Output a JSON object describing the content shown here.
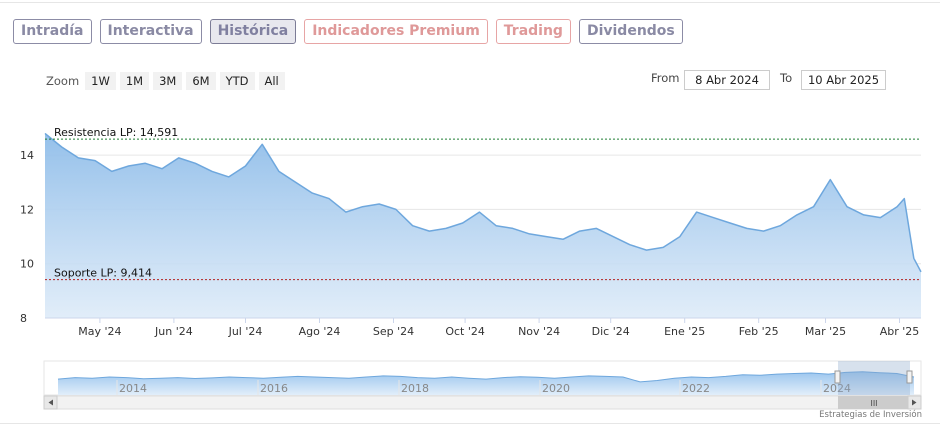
{
  "tabs": [
    {
      "label": "Intradía",
      "state": "normal"
    },
    {
      "label": "Interactiva",
      "state": "normal"
    },
    {
      "label": "Histórica",
      "state": "active"
    },
    {
      "label": "Indicadores Premium",
      "state": "red"
    },
    {
      "label": "Trading",
      "state": "red"
    },
    {
      "label": "Dividendos",
      "state": "normal"
    }
  ],
  "zoom": {
    "label": "Zoom",
    "buttons": [
      "1W",
      "1M",
      "3M",
      "6M",
      "YTD",
      "All"
    ]
  },
  "range": {
    "from_label": "From",
    "from_value": "8 Abr 2024",
    "to_label": "To",
    "to_value": "10 Abr 2025"
  },
  "chart_data": {
    "type": "area",
    "ylim": [
      8,
      15
    ],
    "yticks": [
      8,
      10,
      12,
      14
    ],
    "grid": true,
    "legend": "none",
    "x_tick_labels": [
      "May '24",
      "Jun '24",
      "Jul '24",
      "Ago '24",
      "Sep '24",
      "Oct '24",
      "Nov '24",
      "Dic '24",
      "Ene '25",
      "Feb '25",
      "Mar '25",
      "Abr '25"
    ],
    "x_dates": [
      "2024-04-08",
      "2024-04-15",
      "2024-04-22",
      "2024-04-29",
      "2024-05-06",
      "2024-05-13",
      "2024-05-20",
      "2024-05-27",
      "2024-06-03",
      "2024-06-10",
      "2024-06-17",
      "2024-06-24",
      "2024-07-01",
      "2024-07-08",
      "2024-07-15",
      "2024-07-22",
      "2024-07-29",
      "2024-08-05",
      "2024-08-12",
      "2024-08-19",
      "2024-08-26",
      "2024-09-02",
      "2024-09-09",
      "2024-09-16",
      "2024-09-23",
      "2024-09-30",
      "2024-10-07",
      "2024-10-14",
      "2024-10-21",
      "2024-10-28",
      "2024-11-04",
      "2024-11-11",
      "2024-11-18",
      "2024-11-25",
      "2024-12-02",
      "2024-12-09",
      "2024-12-16",
      "2024-12-23",
      "2024-12-30",
      "2025-01-06",
      "2025-01-13",
      "2025-01-20",
      "2025-01-27",
      "2025-02-03",
      "2025-02-10",
      "2025-02-17",
      "2025-02-24",
      "2025-03-03",
      "2025-03-10",
      "2025-03-17",
      "2025-03-24",
      "2025-03-31",
      "2025-04-03",
      "2025-04-07",
      "2025-04-10"
    ],
    "values": [
      14.8,
      14.3,
      13.9,
      13.8,
      13.4,
      13.6,
      13.7,
      13.5,
      13.9,
      13.7,
      13.4,
      13.2,
      13.6,
      14.4,
      13.4,
      13.0,
      12.6,
      12.4,
      11.9,
      12.1,
      12.2,
      12.0,
      11.4,
      11.2,
      11.3,
      11.5,
      11.9,
      11.4,
      11.3,
      11.1,
      11.0,
      10.9,
      11.2,
      11.3,
      11.0,
      10.7,
      10.5,
      10.6,
      11.0,
      11.9,
      11.7,
      11.5,
      11.3,
      11.2,
      11.4,
      11.8,
      12.1,
      13.1,
      12.1,
      11.8,
      11.7,
      12.1,
      12.4,
      10.2,
      9.7
    ],
    "annotations": [
      {
        "label": "Resistencia LP: 14,591",
        "y": 14.591,
        "color": "#1e7d33"
      },
      {
        "label": "Soporte LP: 9,414",
        "y": 9.414,
        "color": "#b22222"
      }
    ],
    "navigator": {
      "year_labels": [
        "2014",
        "2016",
        "2018",
        "2020",
        "2022",
        "2024"
      ],
      "grip": "III"
    },
    "credit": "Estrategias de Inversión"
  }
}
